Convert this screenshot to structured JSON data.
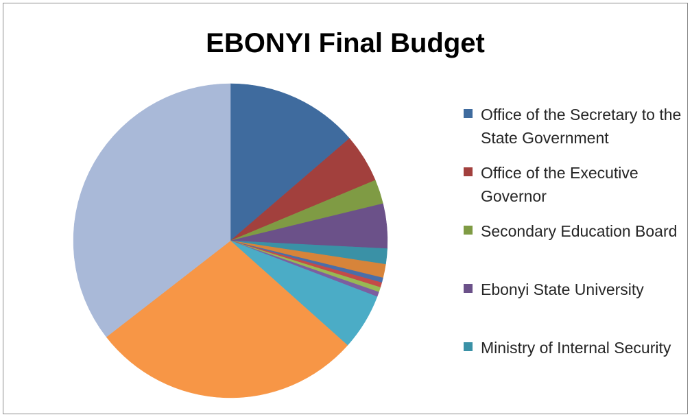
{
  "chart_data": {
    "type": "pie",
    "title": "EBONYI Final Budget",
    "legend_position": "right",
    "series": [
      {
        "name": "Office of the Secretary to the State Government",
        "value": 13.7,
        "color": "#3f6b9e"
      },
      {
        "name": "Office of the Executive Governor",
        "value": 5.0,
        "color": "#a2403d"
      },
      {
        "name": "Secondary Education Board",
        "value": 2.5,
        "color": "#7f9b44"
      },
      {
        "name": "Ebonyi State University",
        "value": 4.6,
        "color": "#6b5189"
      },
      {
        "name": "Ministry of Internal Security",
        "value": 1.6,
        "color": "#3a91a6"
      },
      {
        "name": "",
        "value": 1.4,
        "color": "#d7843a"
      },
      {
        "name": "",
        "value": 0.5,
        "color": "#4a6ea8"
      },
      {
        "name": "",
        "value": 0.5,
        "color": "#c44b48"
      },
      {
        "name": "",
        "value": 0.5,
        "color": "#98b954"
      },
      {
        "name": "",
        "value": 0.5,
        "color": "#7c5ea0"
      },
      {
        "name": "",
        "value": 5.8,
        "color": "#4bacc6"
      },
      {
        "name": "",
        "value": 27.9,
        "color": "#f79646"
      },
      {
        "name": "",
        "value": 35.5,
        "color": "#a9b9d8"
      }
    ]
  }
}
